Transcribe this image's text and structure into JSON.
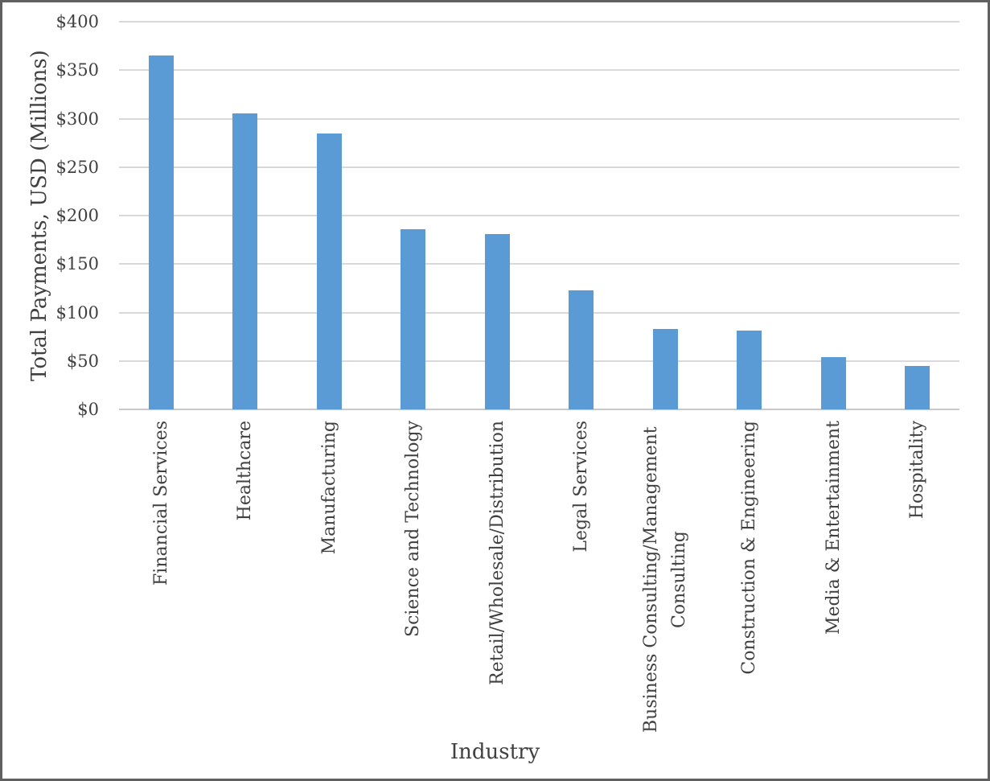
{
  "chart_data": {
    "type": "bar",
    "xlabel": "Industry",
    "ylabel": "Total Payments, USD (Millions)",
    "categories": [
      "Financial Services",
      "Healthcare",
      "Manufacturing",
      "Science and Technology",
      "Retail/Wholesale/Distribution",
      "Legal Services",
      "Business Consulting/Management Consulting",
      "Construction & Engineering",
      "Media & Entertainment",
      "Hospitality"
    ],
    "values": [
      365,
      305,
      285,
      186,
      181,
      123,
      83,
      81,
      54,
      45
    ],
    "ylim": [
      0,
      400
    ],
    "y_ticks": [
      {
        "label": "$0",
        "value": 0
      },
      {
        "label": "$50",
        "value": 50
      },
      {
        "label": "$100",
        "value": 100
      },
      {
        "label": "$150",
        "value": 150
      },
      {
        "label": "$200",
        "value": 200
      },
      {
        "label": "$250",
        "value": 250
      },
      {
        "label": "$300",
        "value": 300
      },
      {
        "label": "$350",
        "value": 350
      },
      {
        "label": "$400",
        "value": 400
      }
    ],
    "grid": true,
    "legend": false,
    "bar_orientation": "vertical",
    "x_tick_rotation_degrees": 90,
    "colors": {
      "bar": "#5B9BD5",
      "gridline": "#D9D9D9",
      "axis_line": "#C9C9C9",
      "text": "#404040",
      "frame_border": "#606060",
      "background": "#FFFFFF"
    }
  }
}
